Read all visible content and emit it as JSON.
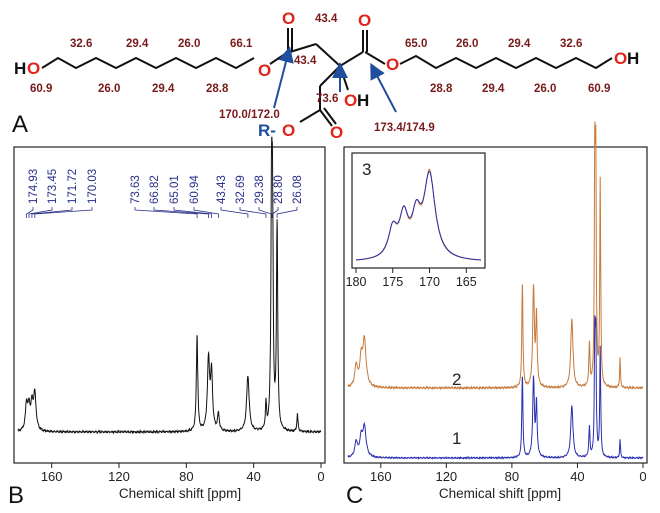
{
  "colors": {
    "oxygen": "#e0241b",
    "carbon_shift": "#7a1a1a",
    "r_group": "#1f4e9e",
    "arrow": "#1f4e9e",
    "trace_b": "#111111",
    "trace_1": "#2a2fb0",
    "trace_2": "#c77a3a",
    "peak_label": "#2a2f8a"
  },
  "structure": {
    "panel_letter": "A",
    "atoms": {
      "ho_left": "HO",
      "oh_right": "OH",
      "oh_center": "OH",
      "o_ester_left": "O",
      "o_carbonyl_left": "O",
      "o_carbonyl_right": "O",
      "o_ester_right": "O",
      "o_bottom_carbonyl": "O",
      "r_group": "R-",
      "o_bottom_ester": "O"
    },
    "shifts": {
      "left_c1": "60.9",
      "left_c2": "32.6",
      "left_c3": "26.0",
      "left_c4": "29.4",
      "left_c5": "29.4",
      "left_c6": "26.0",
      "left_c7": "28.8",
      "left_c8": "66.1",
      "ch2_left": "43.4",
      "ch2_top": "43.4",
      "quaternary": "73.6",
      "co_left": "170.0/172.0",
      "co_right": "173.4/174.9",
      "right_c1": "65.0",
      "right_c2": "28.8",
      "right_c3": "26.0",
      "right_c4": "29.4",
      "right_c5": "29.4",
      "right_c6": "26.0",
      "right_c7": "32.6",
      "right_c8": "60.9"
    }
  },
  "chart_data": [
    {
      "panel": "B",
      "type": "line",
      "xlabel": "Chemical shift [ppm]",
      "xlim": [
        180,
        0
      ],
      "x_ticks": [
        "160",
        "120",
        "80",
        "40",
        "0"
      ],
      "peak_labels": [
        "174.93",
        "173.45",
        "171.72",
        "170.03",
        "73.63",
        "66.82",
        "65.01",
        "60.94",
        "43.43",
        "32.69",
        "29.38",
        "28.80",
        "26.08"
      ],
      "series": [
        {
          "peaks": [
            {
              "x": 174.93,
              "y": 0.12,
              "w": 0.8
            },
            {
              "x": 173.45,
              "y": 0.1,
              "w": 0.8
            },
            {
              "x": 171.72,
              "y": 0.11,
              "w": 0.8
            },
            {
              "x": 170.03,
              "y": 0.17,
              "w": 0.9
            },
            {
              "x": 73.63,
              "y": 0.45,
              "w": 0.5
            },
            {
              "x": 66.82,
              "y": 0.33,
              "w": 0.8
            },
            {
              "x": 65.01,
              "y": 0.26,
              "w": 0.7
            },
            {
              "x": 60.94,
              "y": 0.08,
              "w": 0.6
            },
            {
              "x": 43.43,
              "y": 0.26,
              "w": 0.9
            },
            {
              "x": 32.69,
              "y": 0.12,
              "w": 0.4
            },
            {
              "x": 29.38,
              "y": 0.98,
              "w": 0.45
            },
            {
              "x": 28.8,
              "y": 0.9,
              "w": 0.45
            },
            {
              "x": 26.08,
              "y": 0.95,
              "w": 0.45
            },
            {
              "x": 14.0,
              "y": 0.08,
              "w": 0.4
            }
          ]
        }
      ]
    },
    {
      "panel": "C",
      "type": "line",
      "xlabel": "Chemical shift [ppm]",
      "xlim": [
        180,
        0
      ],
      "x_ticks": [
        "160",
        "120",
        "80",
        "40",
        "0"
      ],
      "series": [
        {
          "name": "1",
          "peaks": [
            {
              "x": 175.0,
              "y": 0.1,
              "w": 1.0
            },
            {
              "x": 172.0,
              "y": 0.12,
              "w": 1.0
            },
            {
              "x": 170.0,
              "y": 0.2,
              "w": 1.2
            },
            {
              "x": 73.6,
              "y": 0.55,
              "w": 0.4
            },
            {
              "x": 66.8,
              "y": 0.52,
              "w": 0.6
            },
            {
              "x": 65.0,
              "y": 0.35,
              "w": 0.5
            },
            {
              "x": 43.4,
              "y": 0.35,
              "w": 0.8
            },
            {
              "x": 32.7,
              "y": 0.2,
              "w": 0.4
            },
            {
              "x": 29.4,
              "y": 0.75,
              "w": 0.35
            },
            {
              "x": 28.8,
              "y": 0.73,
              "w": 0.35
            },
            {
              "x": 26.1,
              "y": 0.73,
              "w": 0.35
            },
            {
              "x": 14.0,
              "y": 0.12,
              "w": 0.3
            }
          ]
        },
        {
          "name": "2",
          "peaks": [
            {
              "x": 175.0,
              "y": 0.1,
              "w": 1.0
            },
            {
              "x": 172.0,
              "y": 0.12,
              "w": 1.0
            },
            {
              "x": 170.0,
              "y": 0.22,
              "w": 1.2
            },
            {
              "x": 73.6,
              "y": 0.5,
              "w": 0.4
            },
            {
              "x": 66.8,
              "y": 0.47,
              "w": 0.6
            },
            {
              "x": 65.0,
              "y": 0.33,
              "w": 0.5
            },
            {
              "x": 43.4,
              "y": 0.33,
              "w": 0.8
            },
            {
              "x": 32.7,
              "y": 0.2,
              "w": 0.4
            },
            {
              "x": 29.4,
              "y": 1.0,
              "w": 0.35
            },
            {
              "x": 28.8,
              "y": 0.98,
              "w": 0.35
            },
            {
              "x": 26.1,
              "y": 0.98,
              "w": 0.35
            },
            {
              "x": 14.0,
              "y": 0.14,
              "w": 0.3
            }
          ]
        }
      ],
      "inset": {
        "label": "3",
        "xlim": [
          180,
          163
        ],
        "x_ticks": [
          "180",
          "175",
          "170",
          "165"
        ],
        "peaks": [
          {
            "x": 175.0,
            "y": 0.32,
            "w": 0.7
          },
          {
            "x": 173.5,
            "y": 0.45,
            "w": 0.7
          },
          {
            "x": 171.8,
            "y": 0.42,
            "w": 0.7
          },
          {
            "x": 170.0,
            "y": 0.95,
            "w": 0.9
          }
        ]
      }
    }
  ]
}
